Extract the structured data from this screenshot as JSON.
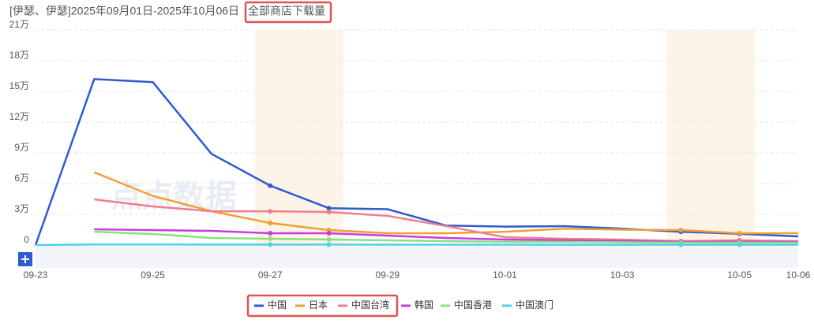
{
  "chart_data": {
    "type": "line",
    "title": "[伊瑟、伊瑟]2025年09月01日-2025年10月06日",
    "metric": "全部商店下载量",
    "watermark": "点点数据",
    "categories": [
      "09-23",
      null,
      "09-25",
      null,
      "09-27",
      null,
      "09-29",
      null,
      "10-01",
      null,
      "10-03",
      null,
      "10-05",
      "10-06"
    ],
    "ylim": [
      0,
      210000
    ],
    "yticks": [
      0,
      {
        "value": 30000,
        "label": "3万"
      },
      {
        "value": 60000,
        "label": "6万"
      },
      {
        "value": 90000,
        "label": "9万"
      },
      {
        "value": 120000,
        "label": "12万"
      },
      {
        "value": 150000,
        "label": "15万"
      },
      {
        "value": 180000,
        "label": "18万"
      },
      {
        "value": 210000,
        "label": "21万"
      }
    ],
    "grid": true,
    "legend": "bottom",
    "series": [
      {
        "name": "中国",
        "color": "#2f5bd0",
        "values": [
          0,
          162000,
          159000,
          89000,
          58000,
          36000,
          35000,
          19000,
          18000,
          18500,
          16000,
          13000,
          11000,
          8500
        ]
      },
      {
        "name": "日本",
        "color": "#f0a030",
        "values": [
          null,
          71000,
          48000,
          33000,
          21500,
          14600,
          11500,
          11500,
          13000,
          16000,
          15000,
          14600,
          11500,
          11500
        ]
      },
      {
        "name": "中国台湾",
        "color": "#f07f8c",
        "values": [
          null,
          44600,
          37700,
          33000,
          33000,
          32300,
          28500,
          18500,
          7700,
          6200,
          5400,
          3800,
          4600,
          3800
        ]
      },
      {
        "name": "韩国",
        "color": "#c83cdc",
        "values": [
          null,
          15400,
          14600,
          13800,
          11500,
          11500,
          9200,
          6900,
          5400,
          4600,
          3800,
          3100,
          3100,
          3100
        ]
      },
      {
        "name": "中国香港",
        "color": "#8be07f",
        "values": [
          null,
          13000,
          10800,
          6900,
          6200,
          5400,
          4600,
          3800,
          3100,
          3100,
          2700,
          2300,
          2300,
          2300
        ]
      },
      {
        "name": "中国澳门",
        "color": "#4fd0ea",
        "values": [
          0,
          600,
          600,
          500,
          500,
          500,
          400,
          400,
          400,
          300,
          300,
          300,
          300,
          300
        ]
      }
    ]
  }
}
